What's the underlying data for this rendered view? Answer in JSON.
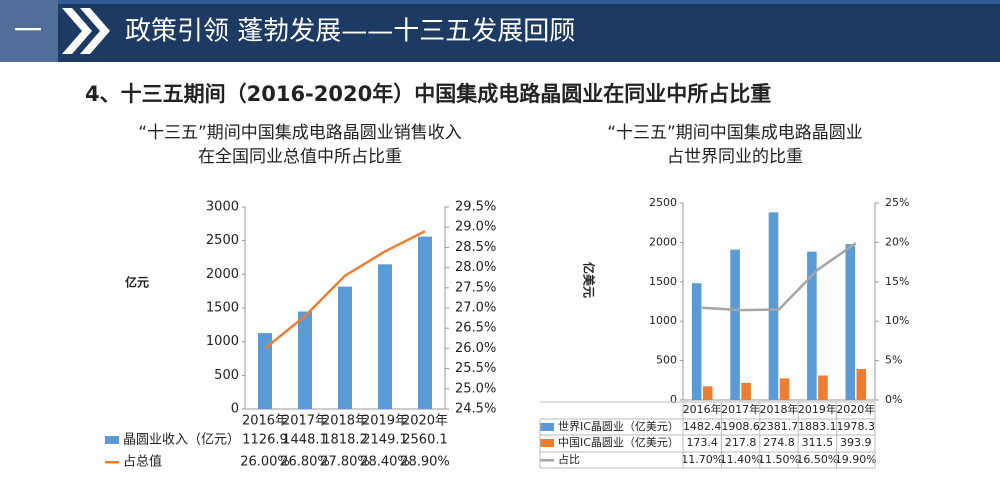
{
  "slide": {
    "section": "一",
    "title": "政策引领 蓬勃发展——十三五发展回顾",
    "subtitle": "4、十三五期间（2016-2020年）中国集成电路晶圆业在同业中所占比重"
  },
  "chart_data": [
    {
      "type": "combo",
      "title": [
        "“十三五”期间中国集成电路晶圆业销售收入",
        "在全国同业总值中所占比重"
      ],
      "y_label": "亿元",
      "categories": [
        "2016年",
        "2017年",
        "2018年",
        "2019年",
        "2020年"
      ],
      "series": [
        {
          "name": "晶圆业收入（亿元）",
          "type": "bar",
          "color": "#5b9bd5",
          "values": [
            1126.9,
            1448.1,
            1818.2,
            2149.1,
            2560.1
          ]
        },
        {
          "name": "占总值",
          "type": "line",
          "axis": "y2",
          "color": "#ed7d31",
          "values": [
            26.0,
            26.8,
            27.8,
            28.4,
            28.9
          ],
          "value_labels": [
            "26.00%",
            "26.80%",
            "27.80%",
            "28.40%",
            "28.90%"
          ]
        }
      ],
      "ylim": [
        0,
        3000
      ],
      "yticks": [
        0,
        500,
        1000,
        1500,
        2000,
        2500,
        3000
      ],
      "y2lim": [
        24.5,
        29.5
      ],
      "y2ticks": [
        {
          "value": 24.5,
          "label": "24.5%"
        },
        {
          "value": 25.0,
          "label": "25.0%"
        },
        {
          "value": 25.5,
          "label": "25.5%"
        },
        {
          "value": 26.0,
          "label": "26.0%"
        },
        {
          "value": 26.5,
          "label": "26.5%"
        },
        {
          "value": 27.0,
          "label": "27.0%"
        },
        {
          "value": 27.5,
          "label": "27.5%"
        },
        {
          "value": 28.0,
          "label": "28.0%"
        },
        {
          "value": 28.5,
          "label": "28.5%"
        },
        {
          "value": 29.0,
          "label": "29.0%"
        },
        {
          "value": 29.5,
          "label": "29.5%"
        }
      ]
    },
    {
      "type": "combo",
      "title": [
        "“十三五”期间中国集成电路晶圆业",
        "占世界同业的比重"
      ],
      "y_label": "亿美元",
      "categories": [
        "2016年",
        "2017年",
        "2018年",
        "2019年",
        "2020年"
      ],
      "series": [
        {
          "name": "世界IC晶圆业（亿美元）",
          "type": "bar",
          "color": "#5b9bd5",
          "values": [
            1482.4,
            1908.6,
            2381.7,
            1883.1,
            1978.3
          ]
        },
        {
          "name": "中国IC晶圆业（亿美元）",
          "type": "bar",
          "color": "#ed7d31",
          "values": [
            173.4,
            217.8,
            274.8,
            311.5,
            393.9
          ]
        },
        {
          "name": "占比",
          "type": "line",
          "axis": "y2",
          "color": "#a5a5a5",
          "values": [
            11.7,
            11.4,
            11.5,
            16.5,
            19.9
          ],
          "value_labels": [
            "11.70%",
            "11.40%",
            "11.50%",
            "16.50%",
            "19.90%"
          ]
        }
      ],
      "ylim": [
        0,
        2500
      ],
      "yticks": [
        0,
        500,
        1000,
        1500,
        2000,
        2500
      ],
      "y2lim": [
        0,
        25
      ],
      "y2ticks": [
        {
          "value": 0,
          "label": "0%"
        },
        {
          "value": 5,
          "label": "5%"
        },
        {
          "value": 10,
          "label": "10%"
        },
        {
          "value": 15,
          "label": "15%"
        },
        {
          "value": 20,
          "label": "20%"
        },
        {
          "value": 25,
          "label": "25%"
        }
      ]
    }
  ]
}
